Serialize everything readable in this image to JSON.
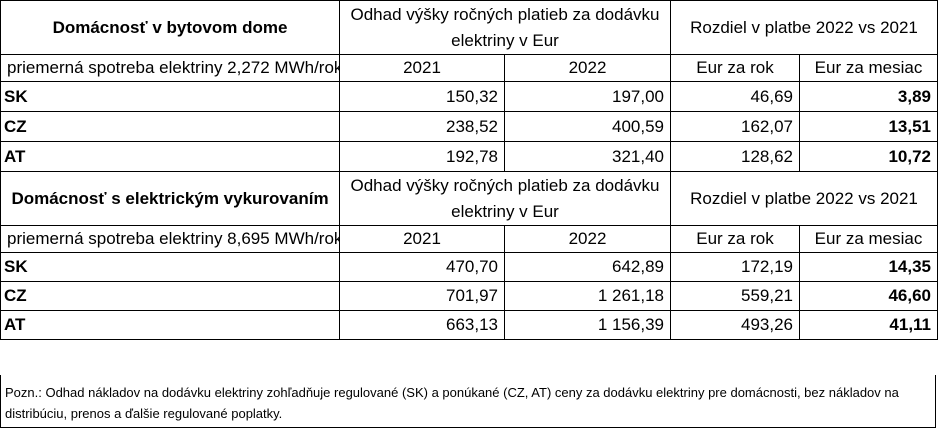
{
  "sections": [
    {
      "title": "Domácnosť v bytovom dome",
      "subtitle": "priemerná spotreba elektriny 2,272 MWh/rok",
      "estimate_header": "Odhad výšky ročných platieb za dodávku elektriny v Eur",
      "diff_header": "Rozdiel v platbe 2022 vs 2021",
      "col_2021": "2021",
      "col_2022": "2022",
      "col_year": "Eur za rok",
      "col_month": "Eur za mesiac",
      "rows": [
        {
          "country": "SK",
          "v2021": "150,32",
          "v2022": "197,00",
          "year": "46,69",
          "month": "3,89"
        },
        {
          "country": "CZ",
          "v2021": "238,52",
          "v2022": "400,59",
          "year": "162,07",
          "month": "13,51"
        },
        {
          "country": "AT",
          "v2021": "192,78",
          "v2022": "321,40",
          "year": "128,62",
          "month": "10,72"
        }
      ]
    },
    {
      "title": "Domácnosť s elektrickým vykurovaním",
      "subtitle": "priemerná spotreba elektriny 8,695 MWh/rok",
      "estimate_header": "Odhad výšky ročných platieb za dodávku elektriny v Eur",
      "diff_header": "Rozdiel v platbe 2022 vs 2021",
      "col_2021": "2021",
      "col_2022": "2022",
      "col_year": "Eur za rok",
      "col_month": "Eur za mesiac",
      "rows": [
        {
          "country": "SK",
          "v2021": "470,70",
          "v2022": "642,89",
          "year": "172,19",
          "month": "14,35"
        },
        {
          "country": "CZ",
          "v2021": "701,97",
          "v2022": "1 261,18",
          "year": "559,21",
          "month": "46,60"
        },
        {
          "country": "AT",
          "v2021": "663,13",
          "v2022": "1 156,39",
          "year": "493,26",
          "month": "41,11"
        }
      ]
    }
  ],
  "note": "Pozn.: Odhad nákladov na dodávku elektriny zohľadňuje regulované (SK) a ponúkané (CZ, AT) ceny za dodávku elektriny pre domácnosti, bez nákladov na distribúciu, prenos a ďalšie regulované poplatky."
}
